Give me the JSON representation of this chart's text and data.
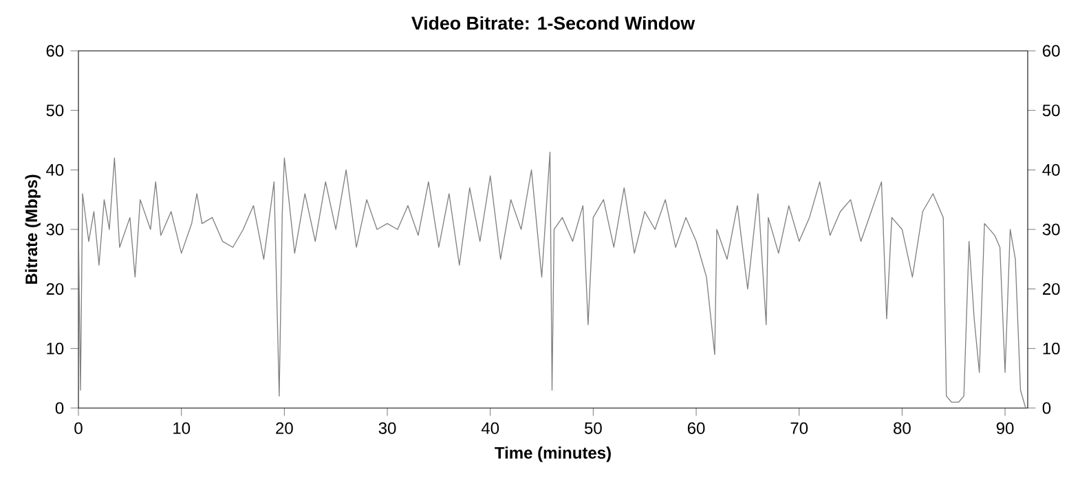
{
  "chart_data": {
    "type": "line",
    "title": "Video Bitrate: 1-Second Window",
    "xlabel": "Time (minutes)",
    "ylabel": "Bitrate (Mbps)",
    "x": [
      0,
      0.2,
      0.4,
      1,
      1.5,
      2,
      2.5,
      3,
      3.5,
      4,
      5,
      5.5,
      6,
      7,
      7.5,
      8,
      9,
      10,
      11,
      11.5,
      12,
      13,
      14,
      15,
      16,
      17,
      18,
      19,
      19.5,
      19.8,
      20,
      21,
      22,
      23,
      24,
      25,
      26,
      27,
      28,
      29,
      30,
      31,
      32,
      33,
      34,
      35,
      36,
      37,
      38,
      39,
      40,
      41,
      42,
      43,
      44,
      45,
      45.8,
      46,
      46.2,
      47,
      48,
      49,
      49.5,
      50,
      51,
      52,
      53,
      54,
      55,
      56,
      57,
      58,
      59,
      60,
      61,
      61.8,
      62,
      63,
      64,
      65,
      66,
      66.8,
      67,
      68,
      69,
      70,
      71,
      72,
      73,
      74,
      75,
      76,
      77,
      78,
      78.5,
      79,
      80,
      81,
      82,
      83,
      84,
      84.3,
      84.8,
      85.5,
      86,
      86.5,
      87,
      87.5,
      88,
      89,
      89.5,
      90,
      90.5,
      91,
      91.5,
      92
    ],
    "series": [
      {
        "color": "#808080",
        "values": [
          30,
          3,
          36,
          28,
          33,
          24,
          35,
          30,
          42,
          27,
          32,
          22,
          35,
          30,
          38,
          29,
          33,
          26,
          31,
          36,
          31,
          32,
          28,
          27,
          30,
          34,
          25,
          38,
          2,
          33,
          42,
          26,
          36,
          28,
          38,
          30,
          40,
          27,
          35,
          30,
          31,
          30,
          34,
          29,
          38,
          27,
          36,
          24,
          37,
          28,
          39,
          25,
          35,
          30,
          40,
          22,
          43,
          3,
          30,
          32,
          28,
          34,
          14,
          32,
          35,
          27,
          37,
          26,
          33,
          30,
          35,
          27,
          32,
          28,
          22,
          9,
          30,
          25,
          34,
          20,
          36,
          14,
          32,
          26,
          34,
          28,
          32,
          38,
          29,
          33,
          35,
          28,
          33,
          38,
          15,
          32,
          30,
          22,
          33,
          36,
          32,
          2,
          1,
          1,
          2,
          28,
          15,
          6,
          31,
          29,
          27,
          6,
          30,
          25,
          3,
          0
        ]
      }
    ],
    "xlim": [
      0,
      92.2
    ],
    "ylim": [
      0,
      60
    ],
    "xticks": [
      0,
      10,
      20,
      30,
      40,
      50,
      60,
      70,
      80,
      90
    ],
    "yticks": [
      0,
      10,
      20,
      30,
      40,
      50,
      60
    ],
    "y2lim": [
      0,
      60
    ],
    "y2ticks": [
      0,
      10,
      20,
      30,
      40,
      50,
      60
    ]
  }
}
